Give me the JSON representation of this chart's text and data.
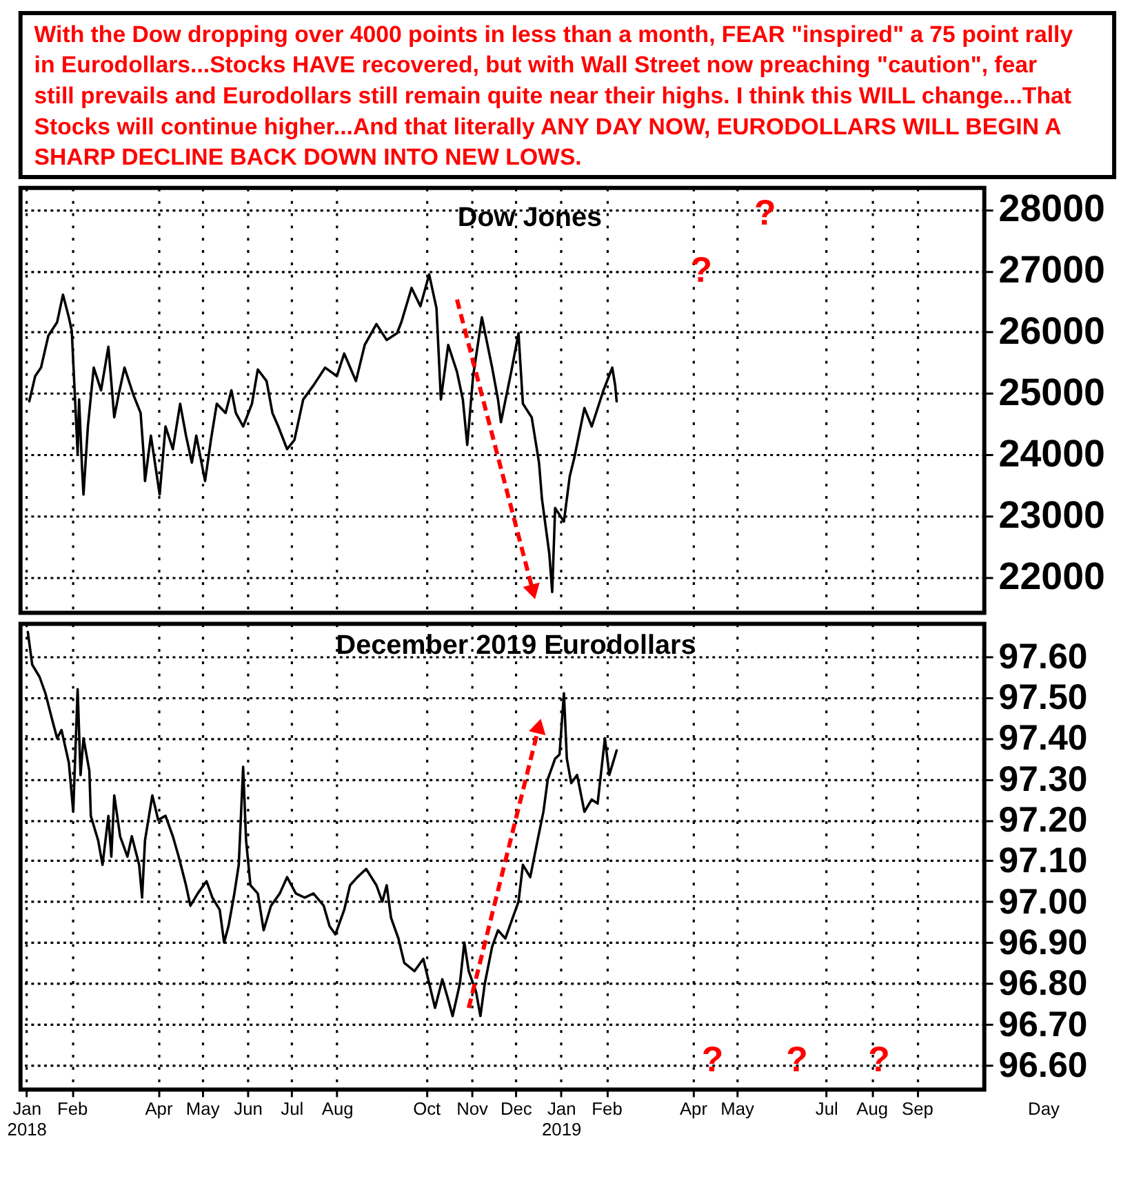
{
  "chart_data": [
    {
      "type": "line",
      "title": "Dow Jones",
      "annotations": [
        "With the Dow dropping over 4000 points in less than a month, FEAR \"inspired\" a 75 point rally\nin Eurodollars...Stocks HAVE recovered, but with Wall Street now preaching \"caution\", fear\nstill prevails and Eurodollars still remain quite near their highs. I think this WILL change...That\nStocks will continue higher...And that literally ANY DAY NOW, EURODOLLARS WILL BEGIN A\nSHARP DECLINE BACK DOWN INTO NEW LOWS.",
        "?",
        "?"
      ],
      "x": [
        "2018-01-03",
        "2018-01-07",
        "2018-01-11",
        "2018-01-16",
        "2018-01-22",
        "2018-01-26",
        "2018-01-30",
        "2018-02-01",
        "2018-02-05",
        "2018-02-06",
        "2018-02-08",
        "2018-02-09",
        "2018-02-12",
        "2018-02-16",
        "2018-02-21",
        "2018-02-26",
        "2018-03-02",
        "2018-03-05",
        "2018-03-09",
        "2018-03-15",
        "2018-03-20",
        "2018-03-22",
        "2018-03-23",
        "2018-03-27",
        "2018-04-02",
        "2018-04-06",
        "2018-04-11",
        "2018-04-16",
        "2018-04-20",
        "2018-04-24",
        "2018-04-27",
        "2018-05-03",
        "2018-05-07",
        "2018-05-11",
        "2018-05-17",
        "2018-05-21",
        "2018-05-24",
        "2018-05-29",
        "2018-06-04",
        "2018-06-08",
        "2018-06-14",
        "2018-06-18",
        "2018-06-22",
        "2018-06-28",
        "2018-07-03",
        "2018-07-09",
        "2018-07-16",
        "2018-07-24",
        "2018-08-01",
        "2018-08-06",
        "2018-08-14",
        "2018-08-20",
        "2018-08-28",
        "2018-09-04",
        "2018-09-11",
        "2018-09-14",
        "2018-09-21",
        "2018-09-27",
        "2018-10-03",
        "2018-10-08",
        "2018-10-11",
        "2018-10-16",
        "2018-10-22",
        "2018-10-26",
        "2018-10-29",
        "2018-11-02",
        "2018-11-08",
        "2018-11-15",
        "2018-11-19",
        "2018-11-21",
        "2018-11-28",
        "2018-12-03",
        "2018-12-06",
        "2018-12-12",
        "2018-12-17",
        "2018-12-19",
        "2018-12-24",
        "2018-12-26",
        "2018-12-28",
        "2019-01-03",
        "2019-01-07",
        "2019-01-10",
        "2019-01-17",
        "2019-01-22",
        "2019-01-30",
        "2019-02-05",
        "2019-02-07",
        "2019-02-08"
      ],
      "series": [
        {
          "color": "#000000",
          "values": [
            24870,
            25280,
            25420,
            25940,
            26160,
            26610,
            26240,
            26020,
            24020,
            24900,
            23790,
            23350,
            24460,
            25420,
            25050,
            25760,
            24610,
            24980,
            25420,
            24980,
            24680,
            24020,
            23570,
            24310,
            23350,
            24460,
            24090,
            24830,
            24310,
            23870,
            24310,
            23570,
            24240,
            24830,
            24680,
            25050,
            24680,
            24460,
            24830,
            25390,
            25200,
            24680,
            24460,
            24090,
            24240,
            24900,
            25130,
            25420,
            25280,
            25650,
            25200,
            25790,
            26130,
            25870,
            25980,
            26160,
            26720,
            26420,
            26940,
            26390,
            24900,
            25790,
            25350,
            24900,
            24160,
            25280,
            26240,
            25420,
            24900,
            24530,
            25350,
            25980,
            24830,
            24610,
            23870,
            23280,
            22390,
            21760,
            23130,
            22910,
            23650,
            23940,
            24760,
            24460,
            25050,
            25420,
            25130,
            24870
          ]
        },
        {
          "type": "line",
          "color": "#ff0000",
          "line_style": "dashed",
          "x": [
            "2018-10-22",
            "2018-12-13"
          ],
          "values": [
            26530,
            21760
          ]
        }
      ],
      "xlim": [
        "2017-12-28",
        "2019-10-17"
      ],
      "xticks": [
        {
          "value": "2018-01-01",
          "label": null
        },
        {
          "value": "2018-02-01",
          "label": null
        },
        {
          "value": "2018-04-01",
          "label": null
        },
        {
          "value": "2018-05-01",
          "label": null
        },
        {
          "value": "2018-06-01",
          "label": null
        },
        {
          "value": "2018-07-01",
          "label": null
        },
        {
          "value": "2018-08-01",
          "label": null
        },
        {
          "value": "2018-10-01",
          "label": null
        },
        {
          "value": "2018-11-01",
          "label": null
        },
        {
          "value": "2018-12-01",
          "label": null
        },
        {
          "value": "2019-01-01",
          "label": null
        },
        {
          "value": "2019-02-01",
          "label": null
        },
        {
          "value": "2019-04-01",
          "label": null
        },
        {
          "value": "2019-05-01",
          "label": null
        },
        {
          "value": "2019-07-01",
          "label": null
        },
        {
          "value": "2019-08-01",
          "label": null
        },
        {
          "value": "2019-09-01",
          "label": null
        }
      ],
      "ylim": [
        21420,
        28350
      ],
      "yticks": [
        22000,
        23000,
        24000,
        25000,
        26000,
        27000,
        28000
      ],
      "grid": true,
      "tick_labels": "y"
    },
    {
      "type": "line",
      "title": "December 2019 Eurodollars",
      "xlabel": "Day",
      "annotations": [
        "?",
        "?",
        "?"
      ],
      "x": [
        "2018-01-02",
        "2018-01-05",
        "2018-01-10",
        "2018-01-14",
        "2018-01-19",
        "2018-01-22",
        "2018-01-25",
        "2018-01-30",
        "2018-02-02",
        "2018-02-05",
        "2018-02-07",
        "2018-02-09",
        "2018-02-13",
        "2018-02-14",
        "2018-02-19",
        "2018-02-22",
        "2018-02-26",
        "2018-02-28",
        "2018-03-02",
        "2018-03-06",
        "2018-03-11",
        "2018-03-14",
        "2018-03-19",
        "2018-03-21",
        "2018-03-23",
        "2018-03-28",
        "2018-04-01",
        "2018-04-06",
        "2018-04-11",
        "2018-04-15",
        "2018-04-20",
        "2018-04-23",
        "2018-04-28",
        "2018-05-04",
        "2018-05-08",
        "2018-05-13",
        "2018-05-16",
        "2018-05-19",
        "2018-05-23",
        "2018-05-26",
        "2018-05-29",
        "2018-05-31",
        "2018-06-03",
        "2018-06-08",
        "2018-06-12",
        "2018-06-17",
        "2018-06-23",
        "2018-06-28",
        "2018-07-04",
        "2018-07-10",
        "2018-07-16",
        "2018-07-23",
        "2018-07-27",
        "2018-07-31",
        "2018-08-06",
        "2018-08-10",
        "2018-08-15",
        "2018-08-21",
        "2018-08-28",
        "2018-09-01",
        "2018-09-04",
        "2018-09-07",
        "2018-09-12",
        "2018-09-16",
        "2018-09-23",
        "2018-09-29",
        "2018-10-03",
        "2018-10-07",
        "2018-10-12",
        "2018-10-16",
        "2018-10-19",
        "2018-10-24",
        "2018-10-27",
        "2018-10-30",
        "2018-11-04",
        "2018-11-07",
        "2018-11-10",
        "2018-11-15",
        "2018-11-19",
        "2018-11-24",
        "2018-11-29",
        "2018-12-03",
        "2018-12-06",
        "2018-12-11",
        "2018-12-16",
        "2018-12-20",
        "2018-12-23",
        "2018-12-28",
        "2018-12-31",
        "2019-01-03",
        "2019-01-05",
        "2019-01-08",
        "2019-01-12",
        "2019-01-17",
        "2019-01-22",
        "2019-01-26",
        "2019-01-31",
        "2019-02-03",
        "2019-02-08"
      ],
      "series": [
        {
          "color": "#000000",
          "values": [
            97.66,
            97.58,
            97.55,
            97.51,
            97.44,
            97.4,
            97.42,
            97.34,
            97.22,
            97.52,
            97.31,
            97.4,
            97.32,
            97.21,
            97.15,
            97.09,
            97.21,
            97.11,
            97.26,
            97.16,
            97.11,
            97.16,
            97.09,
            97.01,
            97.15,
            97.26,
            97.2,
            97.21,
            97.16,
            97.11,
            97.04,
            96.99,
            97.02,
            97.05,
            97.01,
            96.98,
            96.9,
            96.94,
            97.02,
            97.09,
            97.33,
            97.15,
            97.04,
            97.02,
            96.93,
            96.99,
            97.02,
            97.06,
            97.02,
            97.01,
            97.02,
            96.99,
            96.94,
            96.92,
            96.98,
            97.04,
            97.06,
            97.08,
            97.04,
            97.0,
            97.04,
            96.96,
            96.91,
            96.85,
            96.83,
            96.86,
            96.8,
            96.74,
            96.81,
            96.76,
            96.72,
            96.8,
            96.9,
            96.83,
            96.78,
            96.72,
            96.8,
            96.89,
            96.93,
            96.91,
            96.96,
            97.0,
            97.09,
            97.06,
            97.15,
            97.22,
            97.3,
            97.35,
            97.36,
            97.51,
            97.35,
            97.29,
            97.31,
            97.22,
            97.25,
            97.24,
            97.4,
            97.31,
            97.37
          ]
        },
        {
          "type": "line",
          "color": "#ff0000",
          "line_style": "dashed",
          "x": [
            "2018-10-30",
            "2018-12-17"
          ],
          "values": [
            96.74,
            97.43
          ]
        }
      ],
      "xlim": [
        "2017-12-28",
        "2019-10-17"
      ],
      "xticks": [
        {
          "value": "2018-01-01",
          "label": "Jan\n2018"
        },
        {
          "value": "2018-02-01",
          "label": "Feb"
        },
        {
          "value": "2018-04-01",
          "label": "Apr"
        },
        {
          "value": "2018-05-01",
          "label": "May"
        },
        {
          "value": "2018-06-01",
          "label": "Jun"
        },
        {
          "value": "2018-07-01",
          "label": "Jul"
        },
        {
          "value": "2018-08-01",
          "label": "Aug"
        },
        {
          "value": "2018-10-01",
          "label": "Oct"
        },
        {
          "value": "2018-11-01",
          "label": "Nov"
        },
        {
          "value": "2018-12-01",
          "label": "Dec"
        },
        {
          "value": "2019-01-01",
          "label": "Jan\n2019"
        },
        {
          "value": "2019-02-01",
          "label": "Feb"
        },
        {
          "value": "2019-04-01",
          "label": "Apr"
        },
        {
          "value": "2019-05-01",
          "label": "May"
        },
        {
          "value": "2019-07-01",
          "label": "Jul"
        },
        {
          "value": "2019-08-01",
          "label": "Aug"
        },
        {
          "value": "2019-09-01",
          "label": "Sep"
        }
      ],
      "ylim": [
        96.54,
        97.68
      ],
      "yticks": [
        {
          "value": 96.6,
          "label": "96.60"
        },
        {
          "value": 96.7,
          "label": "96.70"
        },
        {
          "value": 96.8,
          "label": "96.80"
        },
        {
          "value": 96.9,
          "label": "96.90"
        },
        {
          "value": 97.0,
          "label": "97.00"
        },
        {
          "value": 97.1,
          "label": "97.10"
        },
        {
          "value": 97.2,
          "label": "97.20"
        },
        {
          "value": 97.3,
          "label": "97.30"
        },
        {
          "value": 97.4,
          "label": "97.40"
        },
        {
          "value": 97.5,
          "label": "97.50"
        },
        {
          "value": 97.6,
          "label": "97.60"
        }
      ],
      "grid": true
    }
  ]
}
